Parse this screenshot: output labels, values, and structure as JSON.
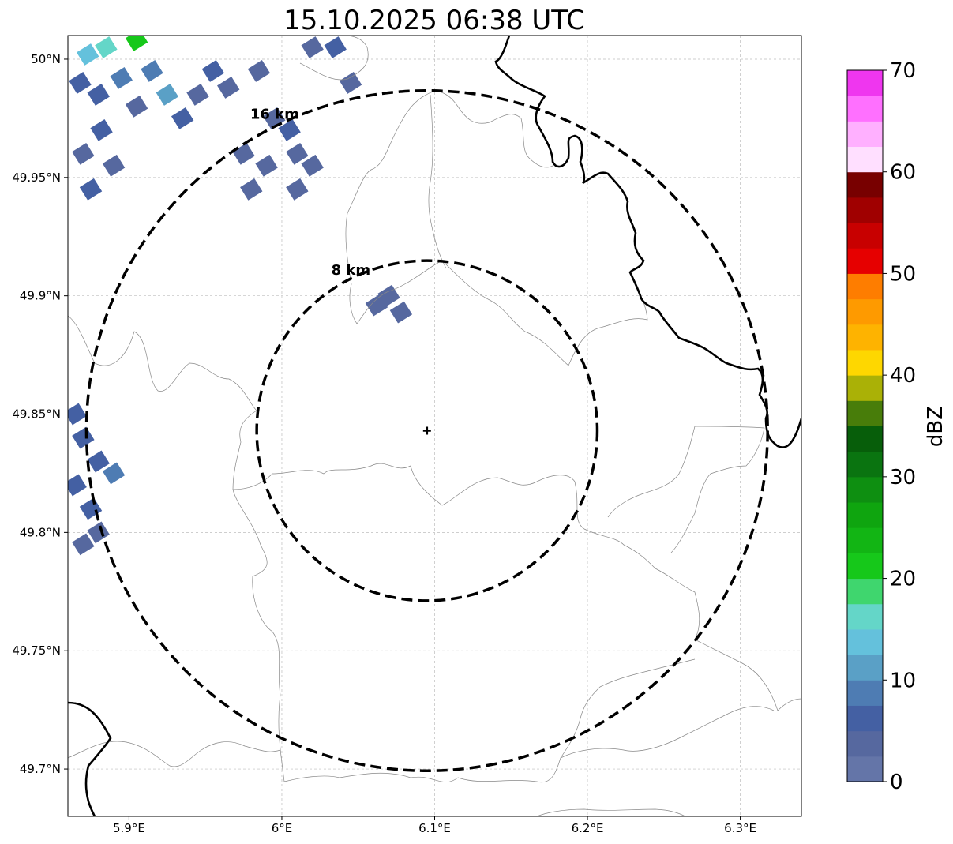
{
  "title": "15.10.2025 06:38 UTC",
  "map": {
    "lon_range": [
      5.86,
      6.34
    ],
    "lat_range": [
      49.68,
      50.01
    ],
    "center": {
      "lon": 6.095,
      "lat": 49.843
    },
    "x_ticks": [
      {
        "value": 5.9,
        "label": "5.9°E"
      },
      {
        "value": 6.0,
        "label": "6°E"
      },
      {
        "value": 6.1,
        "label": "6.1°E"
      },
      {
        "value": 6.2,
        "label": "6.2°E"
      },
      {
        "value": 6.3,
        "label": "6.3°E"
      }
    ],
    "y_ticks": [
      {
        "value": 50.0,
        "label": "50°N"
      },
      {
        "value": 49.95,
        "label": "49.95°N"
      },
      {
        "value": 49.9,
        "label": "49.9°N"
      },
      {
        "value": 49.85,
        "label": "49.85°N"
      },
      {
        "value": 49.8,
        "label": "49.8°N"
      },
      {
        "value": 49.75,
        "label": "49.75°N"
      },
      {
        "value": 49.7,
        "label": "49.7°N"
      }
    ],
    "grid": true,
    "range_rings": [
      {
        "radius_km": 8,
        "label": "8 km"
      },
      {
        "radius_km": 16,
        "label": "16 km"
      }
    ],
    "echo_cells": [
      {
        "lon": 5.868,
        "lat": 49.99,
        "dbz": 5
      },
      {
        "lon": 5.88,
        "lat": 49.985,
        "dbz": 5
      },
      {
        "lon": 5.895,
        "lat": 49.992,
        "dbz": 8
      },
      {
        "lon": 5.905,
        "lat": 49.98,
        "dbz": 3
      },
      {
        "lon": 5.915,
        "lat": 49.995,
        "dbz": 8
      },
      {
        "lon": 5.925,
        "lat": 49.985,
        "dbz": 10
      },
      {
        "lon": 5.935,
        "lat": 49.975,
        "dbz": 5
      },
      {
        "lon": 5.945,
        "lat": 49.985,
        "dbz": 3
      },
      {
        "lon": 5.87,
        "lat": 49.96,
        "dbz": 3
      },
      {
        "lon": 5.882,
        "lat": 49.97,
        "dbz": 5
      },
      {
        "lon": 5.89,
        "lat": 49.955,
        "dbz": 3
      },
      {
        "lon": 5.875,
        "lat": 49.945,
        "dbz": 5
      },
      {
        "lon": 5.885,
        "lat": 50.005,
        "dbz": 15
      },
      {
        "lon": 5.873,
        "lat": 50.002,
        "dbz": 13
      },
      {
        "lon": 5.905,
        "lat": 50.008,
        "dbz": 22
      },
      {
        "lon": 5.955,
        "lat": 49.995,
        "dbz": 5
      },
      {
        "lon": 5.965,
        "lat": 49.988,
        "dbz": 3
      },
      {
        "lon": 5.985,
        "lat": 49.995,
        "dbz": 3
      },
      {
        "lon": 5.995,
        "lat": 49.975,
        "dbz": 3
      },
      {
        "lon": 6.01,
        "lat": 49.96,
        "dbz": 3
      },
      {
        "lon": 6.005,
        "lat": 49.97,
        "dbz": 5
      },
      {
        "lon": 5.99,
        "lat": 49.955,
        "dbz": 3
      },
      {
        "lon": 5.98,
        "lat": 49.945,
        "dbz": 3
      },
      {
        "lon": 6.02,
        "lat": 49.955,
        "dbz": 3
      },
      {
        "lon": 5.975,
        "lat": 49.96,
        "dbz": 3
      },
      {
        "lon": 6.01,
        "lat": 49.945,
        "dbz": 3
      },
      {
        "lon": 6.02,
        "lat": 50.005,
        "dbz": 3
      },
      {
        "lon": 6.035,
        "lat": 50.005,
        "dbz": 5
      },
      {
        "lon": 6.045,
        "lat": 49.99,
        "dbz": 3
      },
      {
        "lon": 6.062,
        "lat": 49.896,
        "dbz": 3
      },
      {
        "lon": 6.07,
        "lat": 49.9,
        "dbz": 3
      },
      {
        "lon": 6.078,
        "lat": 49.893,
        "dbz": 3
      },
      {
        "lon": 5.87,
        "lat": 49.84,
        "dbz": 5
      },
      {
        "lon": 5.88,
        "lat": 49.83,
        "dbz": 5
      },
      {
        "lon": 5.89,
        "lat": 49.825,
        "dbz": 8
      },
      {
        "lon": 5.865,
        "lat": 49.82,
        "dbz": 5
      },
      {
        "lon": 5.875,
        "lat": 49.81,
        "dbz": 5
      },
      {
        "lon": 5.87,
        "lat": 49.795,
        "dbz": 3
      },
      {
        "lon": 5.88,
        "lat": 49.8,
        "dbz": 3
      },
      {
        "lon": 5.865,
        "lat": 49.85,
        "dbz": 5
      }
    ]
  },
  "colorbar": {
    "label": "dBZ",
    "min": 0,
    "max": 70,
    "step": 2.5,
    "ticks": [
      "0",
      "10",
      "20",
      "30",
      "40",
      "50",
      "60",
      "70"
    ],
    "colors": [
      "#6475a8",
      "#56689f",
      "#4460a3",
      "#4e7cb3",
      "#5aa0c6",
      "#64c1dc",
      "#64d6c8",
      "#3fd66e",
      "#16c81a",
      "#12b514",
      "#0fa50f",
      "#0e8f11",
      "#0a7410",
      "#075e0a",
      "#487d0a",
      "#aab106",
      "#fed700",
      "#feb300",
      "#fe9a00",
      "#fe7d00",
      "#e60000",
      "#c80000",
      "#a00000",
      "#780000",
      "#ffdfff",
      "#ffb0ff",
      "#ff70ff",
      "#ef36ef"
    ]
  }
}
